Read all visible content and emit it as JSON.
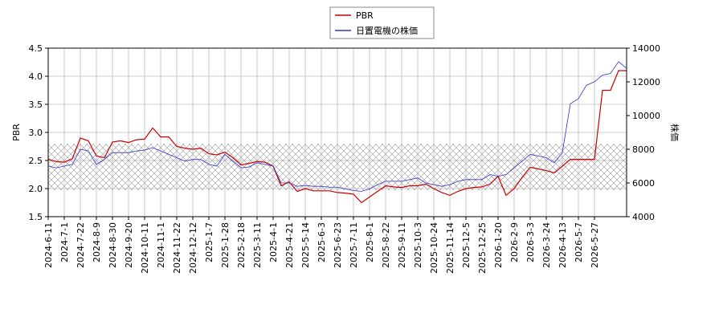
{
  "chart_data": {
    "type": "line",
    "ylabel": "PBR",
    "y2label": "株価",
    "x": [
      0,
      1,
      2,
      3,
      4,
      5,
      6,
      7,
      8,
      9,
      10,
      11,
      12,
      13,
      14,
      15,
      16,
      17,
      18,
      19,
      20,
      21,
      22,
      23,
      24,
      25,
      26,
      27,
      28,
      29,
      30,
      31,
      32,
      33,
      34,
      35,
      36,
      37,
      38,
      39,
      40,
      41,
      42,
      43,
      44,
      45,
      46,
      47,
      48,
      49,
      50,
      51,
      52,
      53,
      54,
      55,
      56,
      57,
      58,
      59,
      60,
      61,
      62,
      63,
      64,
      65,
      66,
      67,
      68,
      69,
      70,
      71,
      72
    ],
    "xlim": [
      0,
      72
    ],
    "xticks": [
      {
        "value": 0,
        "label": "2024-6-11"
      },
      {
        "value": 2,
        "label": "2024-7-1"
      },
      {
        "value": 4,
        "label": "2024-7-22"
      },
      {
        "value": 6,
        "label": "2024-8-9"
      },
      {
        "value": 8,
        "label": "2024-8-30"
      },
      {
        "value": 10,
        "label": "2024-9-20"
      },
      {
        "value": 12,
        "label": "2024-10-11"
      },
      {
        "value": 14,
        "label": "2024-11-1"
      },
      {
        "value": 16,
        "label": "2024-11-22"
      },
      {
        "value": 18,
        "label": "2024-12-12"
      },
      {
        "value": 20,
        "label": "2025-1-7"
      },
      {
        "value": 22,
        "label": "2025-1-28"
      },
      {
        "value": 24,
        "label": "2025-2-18"
      },
      {
        "value": 26,
        "label": "2025-3-11"
      },
      {
        "value": 28,
        "label": "2025-4-1"
      },
      {
        "value": 30,
        "label": "2025-4-21"
      },
      {
        "value": 32,
        "label": "2025-5-14"
      },
      {
        "value": 34,
        "label": "2025-6-3"
      },
      {
        "value": 36,
        "label": "2025-6-23"
      },
      {
        "value": 38,
        "label": "2025-7-11"
      },
      {
        "value": 40,
        "label": "2025-8-1"
      },
      {
        "value": 42,
        "label": "2025-8-22"
      },
      {
        "value": 44,
        "label": "2025-9-11"
      },
      {
        "value": 46,
        "label": "2025-10-3"
      },
      {
        "value": 48,
        "label": "2025-10-24"
      },
      {
        "value": 50,
        "label": "2025-11-14"
      },
      {
        "value": 52,
        "label": "2025-12-5"
      },
      {
        "value": 54,
        "label": "2025-12-25"
      },
      {
        "value": 56,
        "label": "2026-1-20"
      },
      {
        "value": 58,
        "label": "2026-2-9"
      },
      {
        "value": 60,
        "label": "2026-3-3"
      },
      {
        "value": 62,
        "label": "2026-3-24"
      },
      {
        "value": 64,
        "label": "2026-4-13"
      },
      {
        "value": 66,
        "label": "2026-5-7"
      },
      {
        "value": 68,
        "label": "2026-5-27"
      }
    ],
    "ylim": [
      1.5,
      4.5
    ],
    "yticks": [
      {
        "value": 1.5,
        "label": "1.5"
      },
      {
        "value": 2,
        "label": "2.0"
      },
      {
        "value": 2.5,
        "label": "2.5"
      },
      {
        "value": 3,
        "label": "3.0"
      },
      {
        "value": 3.5,
        "label": "3.5"
      },
      {
        "value": 4,
        "label": "4.0"
      },
      {
        "value": 4.5,
        "label": "4.5"
      }
    ],
    "y2lim": [
      4000,
      14000
    ],
    "y2ticks": [
      4000,
      6000,
      8000,
      10000,
      12000,
      14000
    ],
    "shaded_range": [
      1.97,
      2.8
    ],
    "grid": true,
    "legend": "top",
    "series": [
      {
        "name": "PBR",
        "color": "#cc0000",
        "values": [
          2.52,
          2.48,
          2.47,
          2.53,
          2.9,
          2.85,
          2.58,
          2.55,
          2.83,
          2.85,
          2.82,
          2.87,
          2.88,
          3.08,
          2.92,
          2.92,
          2.75,
          2.72,
          2.7,
          2.72,
          2.62,
          2.6,
          2.65,
          2.55,
          2.42,
          2.45,
          2.48,
          2.47,
          2.4,
          2.05,
          2.12,
          1.95,
          2.0,
          1.96,
          1.96,
          1.96,
          1.93,
          1.92,
          1.9,
          1.75,
          1.85,
          1.95,
          2.05,
          2.03,
          2.02,
          2.05,
          2.05,
          2.08,
          2.0,
          1.93,
          1.88,
          1.95,
          2.0,
          2.02,
          2.03,
          2.08,
          2.22,
          1.88,
          2.0,
          2.2,
          2.38,
          2.35,
          2.32,
          2.28,
          2.4,
          2.52,
          2.52,
          2.52,
          2.52,
          3.75,
          3.75,
          4.1,
          4.1
        ]
      },
      {
        "name": "日置電機の株価",
        "color": "#3333cc",
        "axis": "y2",
        "values": [
          7000,
          6900,
          7000,
          7100,
          8000,
          7900,
          7100,
          7400,
          7800,
          7800,
          7800,
          7900,
          7950,
          8100,
          7900,
          7700,
          7500,
          7300,
          7400,
          7400,
          7100,
          7000,
          7700,
          7300,
          6900,
          6950,
          7200,
          7100,
          7000,
          6000,
          6000,
          5800,
          5850,
          5800,
          5800,
          5750,
          5750,
          5650,
          5550,
          5500,
          5650,
          5900,
          6100,
          6100,
          6100,
          6200,
          6300,
          6000,
          5900,
          5800,
          5900,
          6100,
          6200,
          6200,
          6200,
          6500,
          6400,
          6500,
          6900,
          7300,
          7700,
          7600,
          7500,
          7200,
          7800,
          10700,
          11000,
          11800,
          12000,
          12400,
          12500,
          13200,
          12800
        ]
      }
    ]
  }
}
